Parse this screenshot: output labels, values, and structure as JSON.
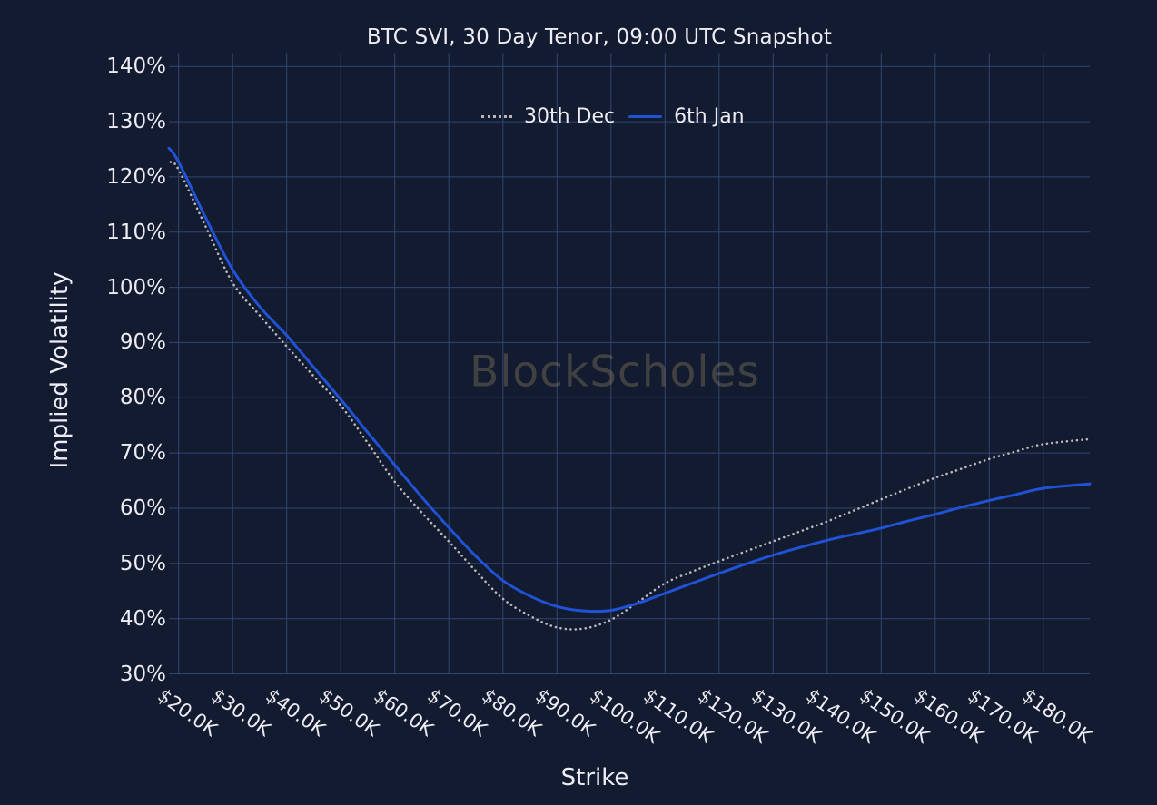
{
  "chart_data": {
    "type": "line",
    "title": "BTC SVI, 30 Day Tenor, 09:00 UTC Snapshot",
    "xlabel": "Strike",
    "ylabel": "Implied Volatility",
    "watermark": "BlockScholes",
    "grid": true,
    "legend_position": "top-center",
    "x_range": [
      18.2,
      188.6
    ],
    "y_range": [
      30,
      142.5
    ],
    "x_tick_values": [
      20,
      30,
      40,
      50,
      60,
      70,
      80,
      90,
      100,
      110,
      120,
      130,
      140,
      150,
      160,
      170,
      180
    ],
    "x_tick_labels": [
      "$20.0K",
      "$30.0K",
      "$40.0K",
      "$50.0K",
      "$60.0K",
      "$70.0K",
      "$80.0K",
      "$90.0K",
      "$100.0K",
      "$110.0K",
      "$120.0K",
      "$130.0K",
      "$140.0K",
      "$150.0K",
      "$160.0K",
      "$170.0K",
      "$180.0K"
    ],
    "y_tick_values": [
      30,
      40,
      50,
      60,
      70,
      80,
      90,
      100,
      110,
      120,
      130,
      140
    ],
    "y_tick_labels": [
      "30%",
      "40%",
      "50%",
      "60%",
      "70%",
      "80%",
      "90%",
      "100%",
      "110%",
      "120%",
      "130%",
      "140%"
    ],
    "colors": {
      "background": "#131b30",
      "grid": "#32466f",
      "text": "#edecf4",
      "watermark": "#9b8a63",
      "dotted_series": "#b9b7b9",
      "solid_series": "#1f52d4"
    },
    "series": [
      {
        "name": "30th Dec",
        "style": "dotted",
        "color": "#b9b7b9",
        "points": [
          [
            18.5,
            122.7
          ],
          [
            20,
            121.3
          ],
          [
            25,
            111.0
          ],
          [
            30,
            100.8
          ],
          [
            35,
            94.9
          ],
          [
            40,
            89.3
          ],
          [
            45,
            83.9
          ],
          [
            50,
            78.6
          ],
          [
            55,
            71.8
          ],
          [
            60,
            64.8
          ],
          [
            65,
            59.2
          ],
          [
            70,
            54.0
          ],
          [
            75,
            48.6
          ],
          [
            80,
            43.6
          ],
          [
            85,
            40.5
          ],
          [
            90,
            38.4
          ],
          [
            95,
            38.2
          ],
          [
            100,
            39.8
          ],
          [
            105,
            43.0
          ],
          [
            110,
            46.4
          ],
          [
            115,
            48.5
          ],
          [
            120,
            50.4
          ],
          [
            125,
            52.2
          ],
          [
            130,
            54.0
          ],
          [
            135,
            55.8
          ],
          [
            140,
            57.6
          ],
          [
            145,
            59.6
          ],
          [
            150,
            61.6
          ],
          [
            155,
            63.6
          ],
          [
            160,
            65.5
          ],
          [
            165,
            67.2
          ],
          [
            170,
            68.9
          ],
          [
            175,
            70.3
          ],
          [
            180,
            71.6
          ],
          [
            188.5,
            72.5
          ]
        ]
      },
      {
        "name": "6th Jan",
        "style": "solid",
        "color": "#1f52d4",
        "points": [
          [
            18.2,
            125.2
          ],
          [
            20,
            122.7
          ],
          [
            25,
            112.6
          ],
          [
            30,
            103.2
          ],
          [
            35,
            96.5
          ],
          [
            40,
            91.3
          ],
          [
            45,
            85.5
          ],
          [
            50,
            79.7
          ],
          [
            55,
            73.7
          ],
          [
            60,
            67.8
          ],
          [
            65,
            62.0
          ],
          [
            70,
            56.5
          ],
          [
            75,
            51.3
          ],
          [
            80,
            46.9
          ],
          [
            85,
            44.1
          ],
          [
            90,
            42.2
          ],
          [
            95,
            41.4
          ],
          [
            100,
            41.5
          ],
          [
            105,
            42.8
          ],
          [
            110,
            44.6
          ],
          [
            115,
            46.4
          ],
          [
            120,
            48.2
          ],
          [
            125,
            49.9
          ],
          [
            130,
            51.5
          ],
          [
            135,
            52.9
          ],
          [
            140,
            54.2
          ],
          [
            145,
            55.3
          ],
          [
            150,
            56.4
          ],
          [
            155,
            57.7
          ],
          [
            160,
            58.9
          ],
          [
            165,
            60.2
          ],
          [
            170,
            61.4
          ],
          [
            175,
            62.5
          ],
          [
            180,
            63.6
          ],
          [
            188.6,
            64.4
          ]
        ]
      }
    ]
  }
}
